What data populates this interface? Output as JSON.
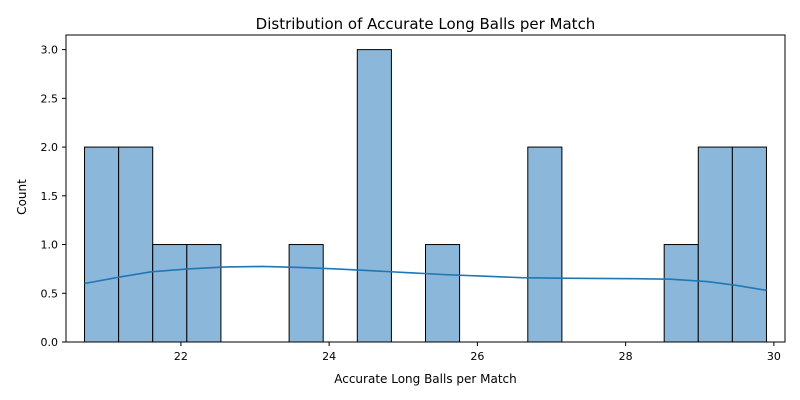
{
  "chart_data": {
    "type": "bar",
    "title": "Distribution of Accurate Long Balls per Match",
    "xlabel": "Accurate Long Balls per Match",
    "ylabel": "Count",
    "xlim": [
      20.45,
      30.15
    ],
    "ylim": [
      0,
      3.15
    ],
    "x_ticks": [
      22,
      24,
      26,
      28,
      30
    ],
    "y_ticks": [
      0.0,
      0.5,
      1.0,
      1.5,
      2.0,
      2.5,
      3.0
    ],
    "x_tick_labels": [
      "22",
      "24",
      "26",
      "28",
      "30"
    ],
    "y_tick_labels": [
      "0.0",
      "0.5",
      "1.0",
      "1.5",
      "2.0",
      "2.5",
      "3.0"
    ],
    "bin_start": 20.7,
    "bin_width": 0.46,
    "bins": [
      {
        "x0": 20.7,
        "x1": 21.16,
        "count": 2
      },
      {
        "x0": 21.16,
        "x1": 21.62,
        "count": 2
      },
      {
        "x0": 21.62,
        "x1": 22.08,
        "count": 1
      },
      {
        "x0": 22.08,
        "x1": 22.54,
        "count": 1
      },
      {
        "x0": 23.46,
        "x1": 23.92,
        "count": 1
      },
      {
        "x0": 24.38,
        "x1": 24.84,
        "count": 3
      },
      {
        "x0": 25.3,
        "x1": 25.76,
        "count": 1
      },
      {
        "x0": 26.68,
        "x1": 27.14,
        "count": 2
      },
      {
        "x0": 28.52,
        "x1": 28.98,
        "count": 1
      },
      {
        "x0": 28.98,
        "x1": 29.44,
        "count": 2
      },
      {
        "x0": 29.44,
        "x1": 29.9,
        "count": 2
      }
    ],
    "kde": {
      "x": [
        20.7,
        21.2,
        21.6,
        22.1,
        22.6,
        23.1,
        23.6,
        24.1,
        24.6,
        25.1,
        25.6,
        26.1,
        26.6,
        27.1,
        27.6,
        28.1,
        28.6,
        29.1,
        29.5,
        29.9
      ],
      "y": [
        0.6,
        0.67,
        0.72,
        0.75,
        0.77,
        0.775,
        0.765,
        0.75,
        0.73,
        0.71,
        0.69,
        0.675,
        0.66,
        0.655,
        0.652,
        0.65,
        0.645,
        0.62,
        0.58,
        0.53
      ]
    },
    "colors": {
      "bar_fill": "#8bb8da",
      "bar_edge": "#000000",
      "kde_line": "#1f77b4"
    },
    "grid": false,
    "legend": "none"
  }
}
